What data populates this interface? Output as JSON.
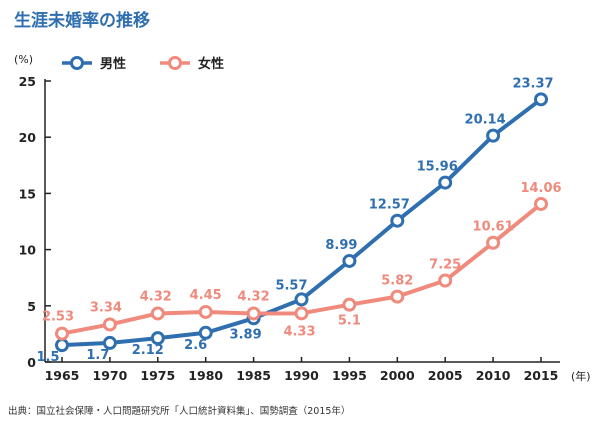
{
  "header": {
    "title": "生涯未婚率の推移",
    "unit": "(%)",
    "x_unit": "(年)",
    "source": "出典：国立社会保障・人口問題研究所「人口統計資料集」、国勢調査（2015年）"
  },
  "colors": {
    "male": "#2f6fb0",
    "female": "#ef8a7c",
    "axis": "#222222"
  },
  "chart_data": {
    "type": "line",
    "title": "生涯未婚率の推移",
    "xlabel": "(年)",
    "ylabel": "(%)",
    "x": [
      "1965",
      "1970",
      "1975",
      "1980",
      "1985",
      "1990",
      "1995",
      "2000",
      "2005",
      "2010",
      "2015"
    ],
    "ylim": [
      0,
      25
    ],
    "yticks": [
      "0",
      "5",
      "10",
      "15",
      "20",
      "25"
    ],
    "grid": false,
    "legend": "top-left",
    "series": [
      {
        "name": "男性",
        "values": [
          1.5,
          1.7,
          2.12,
          2.6,
          3.89,
          5.57,
          8.99,
          12.57,
          15.96,
          20.14,
          23.37
        ],
        "labels": [
          "1.5",
          "1.7",
          "2.12",
          "2.6",
          "3.89",
          "5.57",
          "8.99",
          "12.57",
          "15.96",
          "20.14",
          "23.37"
        ]
      },
      {
        "name": "女性",
        "values": [
          2.53,
          3.34,
          4.32,
          4.45,
          4.32,
          4.33,
          5.1,
          5.82,
          7.25,
          10.61,
          14.06
        ],
        "labels": [
          "2.53",
          "3.34",
          "4.32",
          "4.45",
          "4.32",
          "4.33",
          "5.1",
          "5.82",
          "7.25",
          "10.61",
          "14.06"
        ]
      }
    ]
  }
}
